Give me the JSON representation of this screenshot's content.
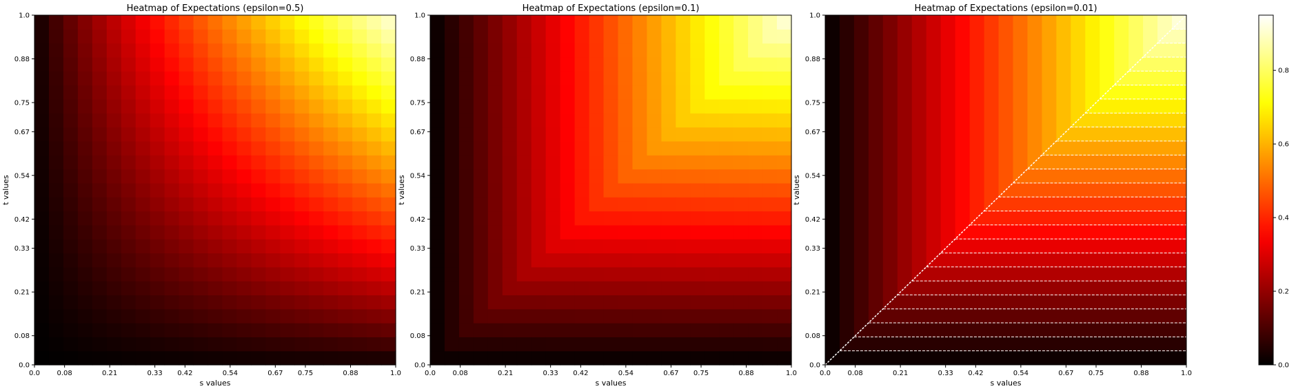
{
  "chart_data": [
    {
      "type": "heatmap",
      "title": "Heatmap of Expectations (epsilon=0.5)",
      "xlabel": "s values",
      "ylabel": "t values",
      "xlim": [
        0.0,
        1.0
      ],
      "ylim": [
        0.0,
        1.0
      ],
      "xticks": [
        "0.0",
        "0.08",
        "0.21",
        "0.33",
        "0.42",
        "0.54",
        "0.67",
        "0.75",
        "0.88",
        "1.0"
      ],
      "yticks": [
        "0.0",
        "0.08",
        "0.21",
        "0.33",
        "0.42",
        "0.54",
        "0.67",
        "0.75",
        "0.88",
        "1.0"
      ],
      "epsilon": 0.5,
      "grid_size": 25,
      "value_pattern": "smooth ~ s * t, maximum at s=1, t=1",
      "value_range": [
        0.0,
        0.95
      ]
    },
    {
      "type": "heatmap",
      "title": "Heatmap of Expectations (epsilon=0.1)",
      "xlabel": "s values",
      "ylabel": "t values",
      "xlim": [
        0.0,
        1.0
      ],
      "ylim": [
        0.0,
        1.0
      ],
      "xticks": [
        "0.0",
        "0.08",
        "0.21",
        "0.33",
        "0.42",
        "0.54",
        "0.67",
        "0.75",
        "0.88",
        "1.0"
      ],
      "yticks": [
        "0.0",
        "0.08",
        "0.21",
        "0.33",
        "0.42",
        "0.54",
        "0.67",
        "0.75",
        "0.88",
        "1.0"
      ],
      "epsilon": 0.1,
      "grid_size": 25,
      "value_pattern": "~ min(s, t), corner-shaped contours",
      "value_range": [
        0.0,
        0.95
      ]
    },
    {
      "type": "heatmap",
      "title": "Heatmap of Expectations (epsilon=0.01)",
      "xlabel": "s values",
      "ylabel": "t values",
      "xlim": [
        0.0,
        1.0
      ],
      "ylim": [
        0.0,
        1.0
      ],
      "xticks": [
        "0.0",
        "0.08",
        "0.21",
        "0.33",
        "0.42",
        "0.54",
        "0.67",
        "0.75",
        "0.88",
        "1.0"
      ],
      "yticks": [
        "0.0",
        "0.08",
        "0.21",
        "0.33",
        "0.42",
        "0.54",
        "0.67",
        "0.75",
        "0.88",
        "1.0"
      ],
      "epsilon": 0.01,
      "grid_size": 25,
      "value_pattern": "~ min(s, t): varies with s above the diagonal, with t below it",
      "value_range": [
        0.0,
        0.98
      ],
      "annotation": "white dashed diagonal from (0,0) to (1,1) with horizontal dashed lines below it"
    }
  ],
  "colorbar": {
    "colormap": "hot",
    "range": [
      0.0,
      0.95
    ],
    "ticks": [
      "0.0",
      "0.2",
      "0.4",
      "0.6",
      "0.8"
    ],
    "tick_values": [
      0.0,
      0.2,
      0.4,
      0.6,
      0.8
    ]
  }
}
